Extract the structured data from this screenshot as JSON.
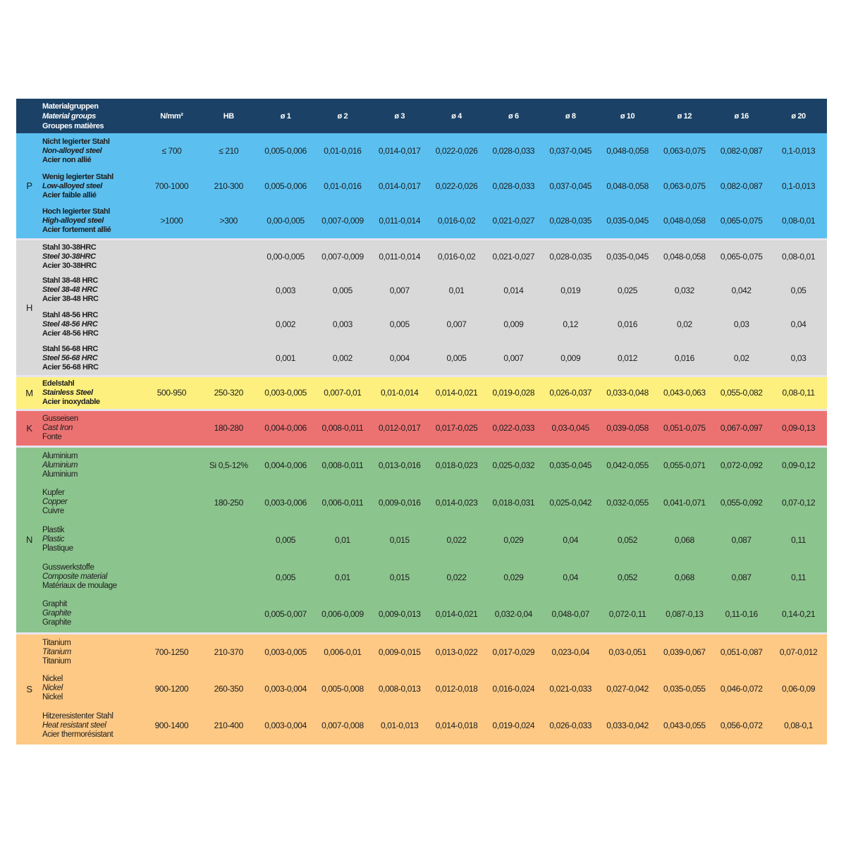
{
  "header": {
    "material_groups": [
      "Materialgruppen",
      "Material groups",
      "Groupes matières"
    ],
    "columns": [
      "N/mm²",
      "HB",
      "ø 1",
      "ø 2",
      "ø 3",
      "ø 4",
      "ø 6",
      "ø 8",
      "ø 10",
      "ø 12",
      "ø 16",
      "ø 20"
    ],
    "color": "#1b4266"
  },
  "groups": [
    {
      "letter": "P",
      "color": "#5bc0f0",
      "bold": true,
      "rows": [
        {
          "names": [
            "Nicht legierter Stahl",
            "Non-alloyed steel",
            "Acier non allié"
          ],
          "nmm": "≤ 700",
          "hb": "≤ 210",
          "values": [
            "0,005-0,006",
            "0,01-0,016",
            "0,014-0,017",
            "0,022-0,026",
            "0,028-0,033",
            "0,037-0,045",
            "0,048-0,058",
            "0,063-0,075",
            "0,082-0,087",
            "0,1-0,013"
          ]
        },
        {
          "names": [
            "Wenig legierter Stahl",
            "Low-alloyed steel",
            "Acier faible allié"
          ],
          "nmm": "700-1000",
          "hb": "210-300",
          "values": [
            "0,005-0,006",
            "0,01-0,016",
            "0,014-0,017",
            "0,022-0,026",
            "0,028-0,033",
            "0,037-0,045",
            "0,048-0,058",
            "0,063-0,075",
            "0,082-0,087",
            "0,1-0,013"
          ]
        },
        {
          "names": [
            "Hoch legierter Stahl",
            "High-alloyed steel",
            "Acier fortement allié"
          ],
          "nmm": ">1000",
          "hb": ">300",
          "values": [
            "0,00-0,005",
            "0,007-0,009",
            "0,011-0,014",
            "0,016-0,02",
            "0,021-0,027",
            "0,028-0,035",
            "0,035-0,045",
            "0,048-0,058",
            "0,065-0,075",
            "0,08-0,01"
          ]
        }
      ]
    },
    {
      "letter": "H",
      "color": "#d9d9d9",
      "bold": true,
      "rows": [
        {
          "names": [
            "Stahl 30-38HRC",
            "Steel 30-38HRC",
            "Acier 30-38HRC"
          ],
          "nmm": "",
          "hb": "",
          "values": [
            "0,00-0,005",
            "0,007-0,009",
            "0,011-0,014",
            "0,016-0,02",
            "0,021-0,027",
            "0,028-0,035",
            "0,035-0,045",
            "0,048-0,058",
            "0,065-0,075",
            "0,08-0,01"
          ]
        },
        {
          "names": [
            "Stahl 38-48 HRC",
            "Steel 38-48 HRC",
            "Acier 38-48 HRC"
          ],
          "nmm": "",
          "hb": "",
          "values": [
            "0,003",
            "0,005",
            "0,007",
            "0,01",
            "0,014",
            "0,019",
            "0,025",
            "0,032",
            "0,042",
            "0,05"
          ]
        },
        {
          "names": [
            "Stahl 48-56 HRC",
            "Steel 48-56 HRC",
            "Acier 48-56 HRC"
          ],
          "nmm": "",
          "hb": "",
          "values": [
            "0,002",
            "0,003",
            "0,005",
            "0,007",
            "0,009",
            "0,12",
            "0,016",
            "0,02",
            "0,03",
            "0,04"
          ]
        },
        {
          "names": [
            "Stahl 56-68 HRC",
            "Steel 56-68 HRC",
            "Acier 56-68 HRC"
          ],
          "nmm": "",
          "hb": "",
          "values": [
            "0,001",
            "0,002",
            "0,004",
            "0,005",
            "0,007",
            "0,009",
            "0,012",
            "0,016",
            "0,02",
            "0,03"
          ]
        }
      ]
    },
    {
      "letter": "M",
      "color": "#fdf07e",
      "bold": true,
      "rows": [
        {
          "names": [
            "Edelstahl",
            "Stainless Steel",
            "Acier inoxydable"
          ],
          "nmm": "500-950",
          "hb": "250-320",
          "values": [
            "0,003-0,005",
            "0,007-0,01",
            "0,01-0,014",
            "0,014-0,021",
            "0,019-0,028",
            "0,026-0,037",
            "0,033-0,048",
            "0,043-0,063",
            "0,055-0,082",
            "0,08-0,11"
          ]
        }
      ]
    },
    {
      "letter": "K",
      "color": "#ec7272",
      "bold": false,
      "rows": [
        {
          "names": [
            "Gusseisen",
            "Cast Iron",
            "Fonte"
          ],
          "nmm": "",
          "hb": "180-280",
          "values": [
            "0,004-0,006",
            "0,008-0,011",
            "0,012-0,017",
            "0,017-0,025",
            "0,022-0,033",
            "0,03-0,045",
            "0,039-0,058",
            "0,051-0,075",
            "0,067-0,097",
            "0,09-0,13"
          ]
        }
      ]
    },
    {
      "letter": "N",
      "color": "#8cc48e",
      "bold": false,
      "rows": [
        {
          "names": [
            "Aluminium",
            "Aluminium",
            "Aluminium"
          ],
          "nmm": "",
          "hb": "Si 0,5-12%",
          "values": [
            "0,004-0,006",
            "0,008-0,011",
            "0,013-0,016",
            "0,018-0,023",
            "0,025-0,032",
            "0,035-0,045",
            "0,042-0,055",
            "0,055-0,071",
            "0,072-0,092",
            "0,09-0,12"
          ]
        },
        {
          "names": [
            "Kupfer",
            "Copper",
            "Cuivre"
          ],
          "nmm": "",
          "hb": "180-250",
          "values": [
            "0,003-0,006",
            "0,006-0,011",
            "0,009-0,016",
            "0,014-0,023",
            "0,018-0,031",
            "0,025-0,042",
            "0,032-0,055",
            "0,041-0,071",
            "0,055-0,092",
            "0,07-0,12"
          ]
        },
        {
          "names": [
            "Plastik",
            "Plastic",
            "Plastique"
          ],
          "nmm": "",
          "hb": "",
          "values": [
            "0,005",
            "0,01",
            "0,015",
            "0,022",
            "0,029",
            "0,04",
            "0,052",
            "0,068",
            "0,087",
            "0,11"
          ]
        },
        {
          "names": [
            "Gusswerkstoffe",
            "Composite material",
            "Matériaux de moulage"
          ],
          "nmm": "",
          "hb": "",
          "values": [
            "0,005",
            "0,01",
            "0,015",
            "0,022",
            "0,029",
            "0,04",
            "0,052",
            "0,068",
            "0,087",
            "0,11"
          ]
        },
        {
          "names": [
            "Graphit",
            "Graphite",
            "Graphite"
          ],
          "nmm": "",
          "hb": "",
          "values": [
            "0,005-0,007",
            "0,006-0,009",
            "0,009-0,013",
            "0,014-0,021",
            "0,032-0,04",
            "0,048-0,07",
            "0,072-0,11",
            "0,087-0,13",
            "0,11-0,16",
            "0,14-0,21"
          ]
        }
      ]
    },
    {
      "letter": "S",
      "color": "#fdc985",
      "bold": false,
      "rows": [
        {
          "names": [
            "Titanium",
            "Titanium",
            "Titanium"
          ],
          "nmm": "700-1250",
          "hb": "210-370",
          "values": [
            "0,003-0,005",
            "0,006-0,01",
            "0,009-0,015",
            "0,013-0,022",
            "0,017-0,029",
            "0,023-0,04",
            "0,03-0,051",
            "0,039-0,067",
            "0,051-0,087",
            "0,07-0,012"
          ]
        },
        {
          "names": [
            "Nickel",
            "Nickel",
            "Nickel"
          ],
          "nmm": "900-1200",
          "hb": "260-350",
          "values": [
            "0,003-0,004",
            "0,005-0,008",
            "0,008-0,013",
            "0,012-0,018",
            "0,016-0,024",
            "0,021-0,033",
            "0,027-0,042",
            "0,035-0,055",
            "0,046-0,072",
            "0,06-0,09"
          ]
        },
        {
          "names": [
            "Hitzeresistenter Stahl",
            "Heat resistant steel",
            "Acier thermorésistant"
          ],
          "nmm": "900-1400",
          "hb": "210-400",
          "values": [
            "0,003-0,004",
            "0,007-0,008",
            "0,01-0,013",
            "0,014-0,018",
            "0,019-0,024",
            "0,026-0,033",
            "0,033-0,042",
            "0,043-0,055",
            "0,056-0,072",
            "0,08-0,1"
          ]
        }
      ]
    }
  ]
}
